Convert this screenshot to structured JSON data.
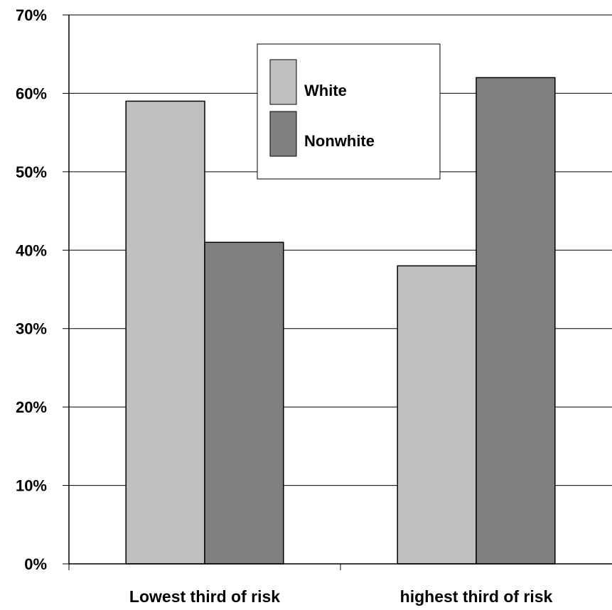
{
  "chart_data": {
    "type": "bar",
    "title": "",
    "xlabel": "",
    "ylabel": "",
    "categories": [
      "Lowest third of risk",
      "highest third of risk"
    ],
    "series": [
      {
        "name": "White",
        "values": [
          59,
          38
        ],
        "color": "#c0c0c0"
      },
      {
        "name": "Nonwhite",
        "values": [
          41,
          62
        ],
        "color": "#808080"
      }
    ],
    "ylim": [
      0,
      70
    ],
    "yticks": [
      0,
      10,
      20,
      30,
      40,
      50,
      60,
      70
    ],
    "ytick_labels": [
      "0%",
      "10%",
      "20%",
      "30%",
      "40%",
      "50%",
      "60%",
      "70%"
    ],
    "grid": true,
    "legend_position": "top-center"
  }
}
